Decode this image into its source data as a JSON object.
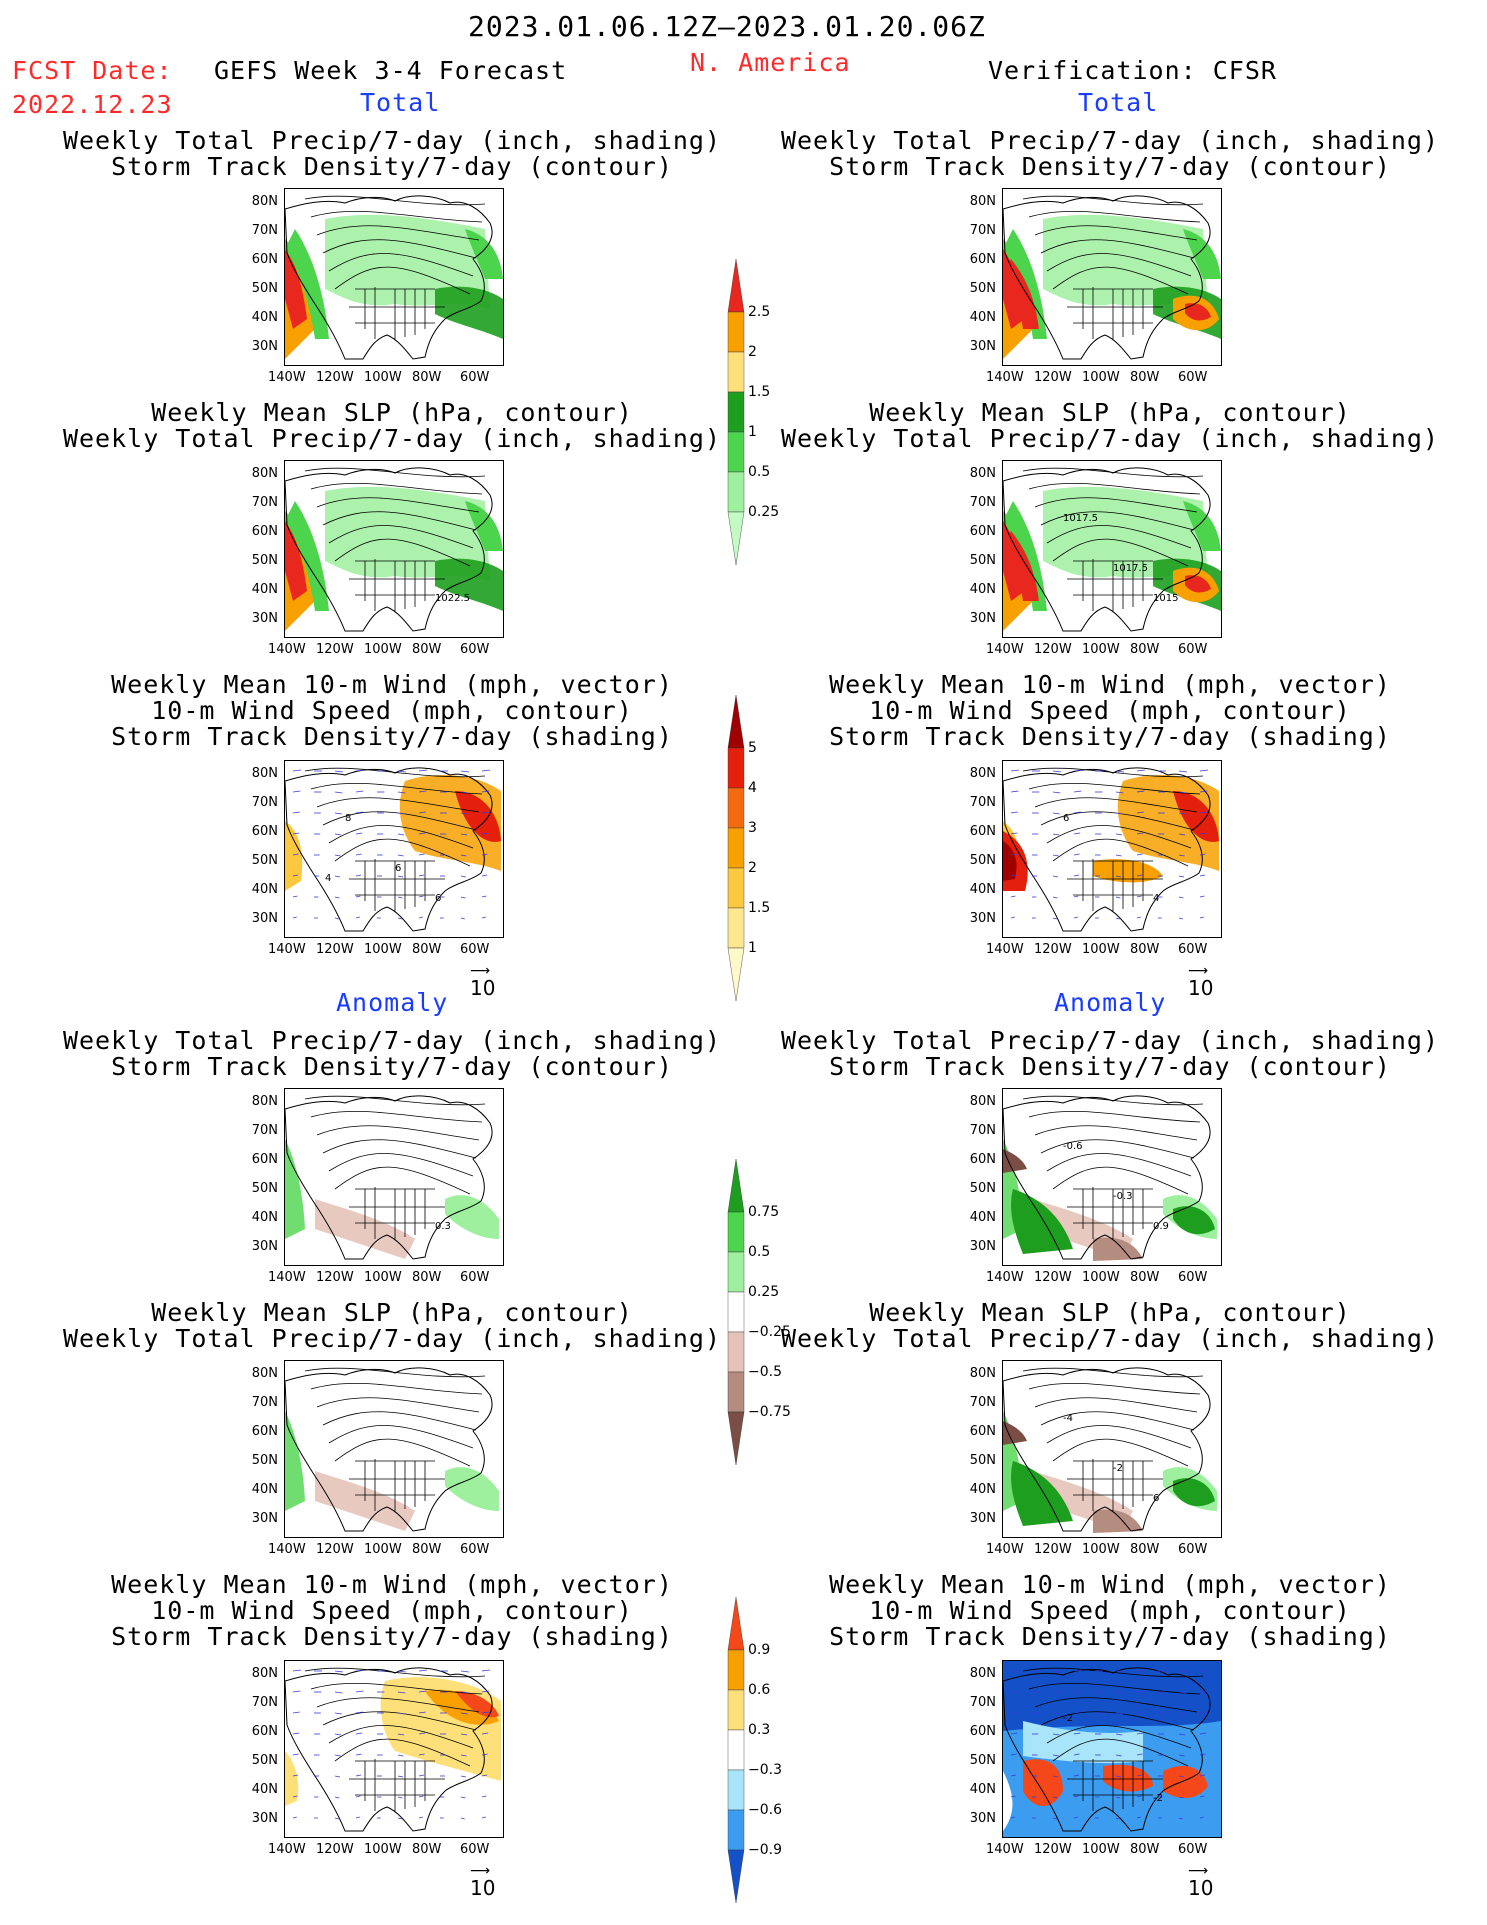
{
  "header": {
    "date_range": "2023.01.06.12Z–2023.01.20.06Z",
    "fcst_label": "FCST Date:",
    "fcst_date": "2022.12.23",
    "model": "GEFS Week 3-4 Forecast",
    "region": "N. America",
    "verification": "Verification: CFSR"
  },
  "sections": {
    "total": "Total",
    "anomaly": "Anomaly"
  },
  "titles": {
    "precip_storm": [
      "Weekly Total Precip/7-day (inch, shading)",
      "Storm Track Density/7-day (contour)"
    ],
    "slp_precip": [
      "Weekly Mean SLP (hPa, contour)",
      "Weekly Total Precip/7-day (inch, shading)"
    ],
    "wind_storm": [
      "Weekly Mean 10-m Wind (mph, vector)",
      "10-m Wind Speed (mph, contour)",
      "Storm Track Density/7-day (shading)"
    ]
  },
  "axes": {
    "lat_ticks": [
      "80N",
      "70N",
      "60N",
      "50N",
      "40N",
      "30N"
    ],
    "lon_ticks": [
      "140W",
      "120W",
      "100W",
      "80W",
      "60W"
    ]
  },
  "vector_ref": "10",
  "map_labels": {
    "f_slp_total": [
      "1022.5"
    ],
    "v_slp_total": [
      "1015",
      "1017.5",
      "1017.5"
    ],
    "f_wind_total": [
      "6",
      "8",
      "6",
      "4"
    ],
    "v_wind_total": [
      "4",
      "6"
    ],
    "f_precip_anom": [
      "0.3"
    ],
    "v_precip_anom": [
      "0.9",
      "-0.6",
      "-0.3"
    ],
    "v_slp_anom": [
      "6",
      "-4",
      "-2"
    ],
    "v_wind_anom": [
      "-2",
      "-2"
    ]
  },
  "colorbars": [
    {
      "id": "precip_total",
      "labels": [
        "2.5",
        "2",
        "1.5",
        "1",
        "0.5",
        "0.25"
      ],
      "colors": [
        "#e8281e",
        "#f7a000",
        "#fde07a",
        "#1e9e1e",
        "#4cd44c",
        "#9ef09e",
        "#c4fac4"
      ]
    },
    {
      "id": "storm_total",
      "labels": [
        "5",
        "4",
        "3",
        "2",
        "1.5",
        "1"
      ],
      "colors": [
        "#a00000",
        "#e4200c",
        "#f46a10",
        "#f7a000",
        "#fbc840",
        "#fde890",
        "#fff8c8"
      ]
    },
    {
      "id": "precip_anom",
      "labels": [
        "0.75",
        "0.5",
        "0.25",
        "−0.25",
        "−0.5",
        "−0.75"
      ],
      "colors": [
        "#1e9e1e",
        "#4cd44c",
        "#9ef09e",
        "#ffffff",
        "#e6c3b8",
        "#b48c80",
        "#7a4e44"
      ]
    },
    {
      "id": "storm_anom",
      "labels": [
        "0.9",
        "0.6",
        "0.3",
        "−0.3",
        "−0.6",
        "−0.9"
      ],
      "colors": [
        "#f4481a",
        "#f7a000",
        "#fde07a",
        "#ffffff",
        "#a8e4fa",
        "#3c9cf0",
        "#1450c8"
      ]
    }
  ]
}
